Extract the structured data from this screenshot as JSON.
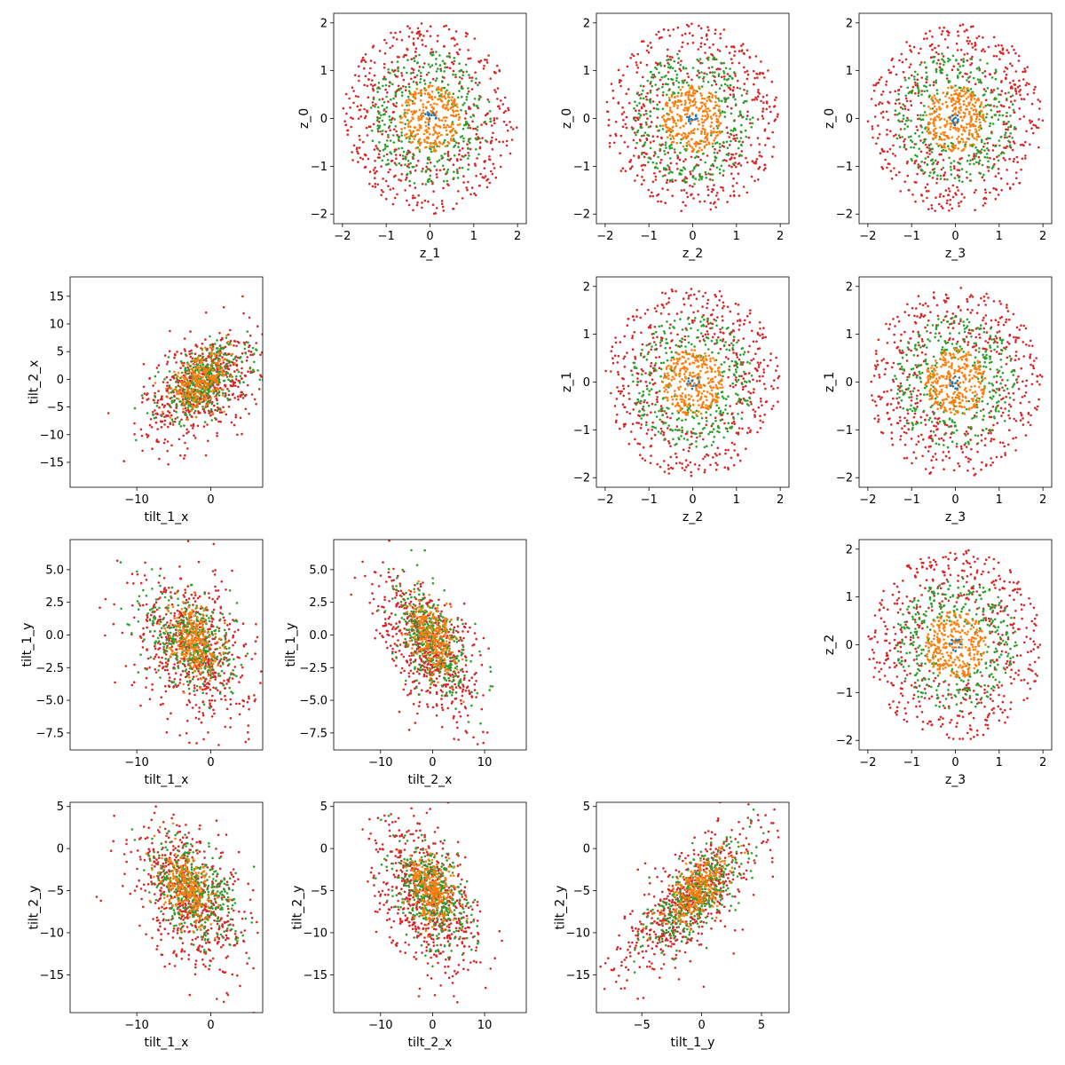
{
  "colors": {
    "outer": "#d62728",
    "middle": "#2ca02c",
    "inner": "#ff7f0e",
    "core": "#1f77b4"
  },
  "chart_data": [
    {
      "type": "scatter",
      "kind": "ring",
      "row": 0,
      "col": 1,
      "xlabel": "z_1",
      "ylabel": "z_0",
      "xlim": [
        -2.2,
        2.2
      ],
      "ylim": [
        -2.2,
        2.2
      ],
      "xticks": [
        -2,
        -1,
        0,
        1,
        2
      ],
      "yticks": [
        -2,
        -1,
        0,
        1,
        2
      ]
    },
    {
      "type": "scatter",
      "kind": "ring",
      "row": 0,
      "col": 2,
      "xlabel": "z_2",
      "ylabel": "z_0",
      "xlim": [
        -2.2,
        2.2
      ],
      "ylim": [
        -2.2,
        2.2
      ],
      "xticks": [
        -2,
        -1,
        0,
        1,
        2
      ],
      "yticks": [
        -2,
        -1,
        0,
        1,
        2
      ]
    },
    {
      "type": "scatter",
      "kind": "ring",
      "row": 0,
      "col": 3,
      "xlabel": "z_3",
      "ylabel": "z_0",
      "xlim": [
        -2.2,
        2.2
      ],
      "ylim": [
        -2.2,
        2.2
      ],
      "xticks": [
        -2,
        -1,
        0,
        1,
        2
      ],
      "yticks": [
        -2,
        -1,
        0,
        1,
        2
      ]
    },
    {
      "type": "scatter",
      "kind": "cloud",
      "row": 1,
      "col": 0,
      "xlabel": "tilt_1_x",
      "ylabel": "tilt_2_x",
      "xlim": [
        -19,
        7
      ],
      "ylim": [
        -19.5,
        18.5
      ],
      "xticks": [
        -10,
        0
      ],
      "yticks": [
        -15,
        -10,
        -5,
        0,
        5,
        10,
        15
      ],
      "groups": {
        "outer": {
          "mx": -1,
          "my": -1,
          "sx": 4,
          "sy": 5,
          "rho": 0.45
        },
        "middle": {
          "mx": -1,
          "my": -0.5,
          "sx": 3,
          "sy": 3.5,
          "rho": 0.5
        },
        "inner": {
          "mx": -1.5,
          "my": -0.5,
          "sx": 2,
          "sy": 2.5,
          "rho": 0.5
        }
      }
    },
    {
      "type": "scatter",
      "kind": "ring",
      "row": 1,
      "col": 2,
      "xlabel": "z_2",
      "ylabel": "z_1",
      "xlim": [
        -2.2,
        2.2
      ],
      "ylim": [
        -2.2,
        2.2
      ],
      "xticks": [
        -2,
        -1,
        0,
        1,
        2
      ],
      "yticks": [
        -2,
        -1,
        0,
        1,
        2
      ]
    },
    {
      "type": "scatter",
      "kind": "ring",
      "row": 1,
      "col": 3,
      "xlabel": "z_3",
      "ylabel": "z_1",
      "xlim": [
        -2.2,
        2.2
      ],
      "ylim": [
        -2.2,
        2.2
      ],
      "xticks": [
        -2,
        -1,
        0,
        1,
        2
      ],
      "yticks": [
        -2,
        -1,
        0,
        1,
        2
      ]
    },
    {
      "type": "scatter",
      "kind": "cloud",
      "row": 2,
      "col": 0,
      "xlabel": "tilt_1_x",
      "ylabel": "tilt_1_y",
      "xlim": [
        -19,
        7
      ],
      "ylim": [
        -8.8,
        7.3
      ],
      "xticks": [
        -10,
        0
      ],
      "yticks": [
        -7.5,
        -5.0,
        -2.5,
        0.0,
        2.5,
        5.0
      ],
      "groups": {
        "outer": {
          "mx": -2.5,
          "my": -1,
          "sx": 4,
          "sy": 2.8,
          "rho": -0.35
        },
        "middle": {
          "mx": -2.5,
          "my": -0.5,
          "sx": 3,
          "sy": 2,
          "rho": -0.3
        },
        "inner": {
          "mx": -2.5,
          "my": -0.3,
          "sx": 1.6,
          "sy": 1.3,
          "rho": -0.3
        }
      }
    },
    {
      "type": "scatter",
      "kind": "cloud",
      "row": 2,
      "col": 1,
      "xlabel": "tilt_2_x",
      "ylabel": "tilt_1_y",
      "xlim": [
        -19,
        18
      ],
      "ylim": [
        -8.8,
        7.3
      ],
      "xticks": [
        -10,
        0,
        10
      ],
      "yticks": [
        -7.5,
        -5.0,
        -2.5,
        0.0,
        2.5,
        5.0
      ],
      "groups": {
        "outer": {
          "mx": -1,
          "my": -1,
          "sx": 5,
          "sy": 2.8,
          "rho": -0.55
        },
        "middle": {
          "mx": 0,
          "my": -0.5,
          "sx": 3.5,
          "sy": 2,
          "rho": -0.5
        },
        "inner": {
          "mx": 0,
          "my": -0.3,
          "sx": 2.2,
          "sy": 1.3,
          "rho": -0.4
        }
      }
    },
    {
      "type": "scatter",
      "kind": "ring",
      "row": 2,
      "col": 3,
      "xlabel": "z_3",
      "ylabel": "z_2",
      "xlim": [
        -2.2,
        2.2
      ],
      "ylim": [
        -2.2,
        2.2
      ],
      "xticks": [
        -2,
        -1,
        0,
        1,
        2
      ],
      "yticks": [
        -2,
        -1,
        0,
        1,
        2
      ]
    },
    {
      "type": "scatter",
      "kind": "cloud",
      "row": 3,
      "col": 0,
      "xlabel": "tilt_1_x",
      "ylabel": "tilt_2_y",
      "xlim": [
        -19,
        7
      ],
      "ylim": [
        -19.5,
        5.5
      ],
      "xticks": [
        -10,
        0
      ],
      "yticks": [
        -15,
        -10,
        -5,
        0,
        5
      ],
      "groups": {
        "outer": {
          "mx": -2.5,
          "my": -6,
          "sx": 4,
          "sy": 4.5,
          "rho": -0.45
        },
        "middle": {
          "mx": -2.5,
          "my": -5,
          "sx": 3,
          "sy": 3,
          "rho": -0.45
        },
        "inner": {
          "mx": -3,
          "my": -5,
          "sx": 1.8,
          "sy": 2,
          "rho": -0.4
        }
      }
    },
    {
      "type": "scatter",
      "kind": "cloud",
      "row": 3,
      "col": 1,
      "xlabel": "tilt_2_x",
      "ylabel": "tilt_2_y",
      "xlim": [
        -19,
        18
      ],
      "ylim": [
        -19.5,
        5.5
      ],
      "xticks": [
        -10,
        0,
        10
      ],
      "yticks": [
        -15,
        -10,
        -5,
        0,
        5
      ],
      "groups": {
        "outer": {
          "mx": -1,
          "my": -6,
          "sx": 5,
          "sy": 4.5,
          "rho": -0.45
        },
        "middle": {
          "mx": 0,
          "my": -5.5,
          "sx": 3.5,
          "sy": 3,
          "rho": -0.4
        },
        "inner": {
          "mx": 0,
          "my": -5,
          "sx": 2.2,
          "sy": 2,
          "rho": -0.35
        }
      }
    },
    {
      "type": "scatter",
      "kind": "cloud",
      "row": 3,
      "col": 2,
      "xlabel": "tilt_1_y",
      "ylabel": "tilt_2_y",
      "xlim": [
        -8.8,
        7.3
      ],
      "ylim": [
        -19.5,
        5.5
      ],
      "xticks": [
        -5,
        0,
        5
      ],
      "yticks": [
        -15,
        -10,
        -5,
        0,
        5
      ],
      "groups": {
        "outer": {
          "mx": -1,
          "my": -6,
          "sx": 2.8,
          "sy": 4.5,
          "rho": 0.75
        },
        "middle": {
          "mx": -0.5,
          "my": -5.5,
          "sx": 2,
          "sy": 3,
          "rho": 0.7
        },
        "inner": {
          "mx": -0.3,
          "my": -5,
          "sx": 1.3,
          "sy": 2,
          "rho": 0.65
        }
      }
    }
  ]
}
